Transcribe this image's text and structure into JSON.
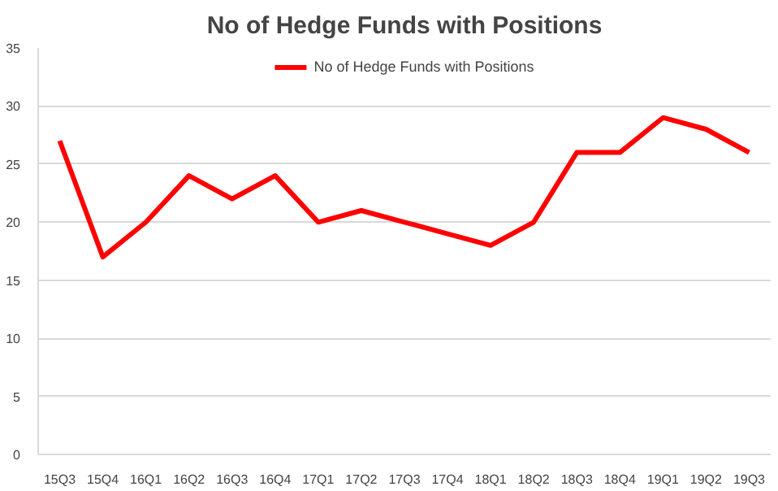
{
  "chart_data": {
    "type": "line",
    "title": "No of Hedge Funds with Positions",
    "categories": [
      "15Q3",
      "15Q4",
      "16Q1",
      "16Q2",
      "16Q3",
      "16Q4",
      "17Q1",
      "17Q2",
      "17Q3",
      "17Q4",
      "18Q1",
      "18Q2",
      "18Q3",
      "18Q4",
      "19Q1",
      "19Q2",
      "19Q3"
    ],
    "series": [
      {
        "name": "No of Hedge Funds with Positions",
        "color": "#ff0000",
        "values": [
          27,
          17,
          20,
          24,
          22,
          24,
          20,
          21,
          20,
          19,
          18,
          20,
          26,
          26,
          29,
          28,
          26
        ]
      }
    ],
    "ylim": [
      0,
      35
    ],
    "yticks": [
      0,
      5,
      10,
      15,
      20,
      25,
      30,
      35
    ],
    "grid": "y",
    "legend": "top",
    "line_style": "solid",
    "marker": "none"
  }
}
